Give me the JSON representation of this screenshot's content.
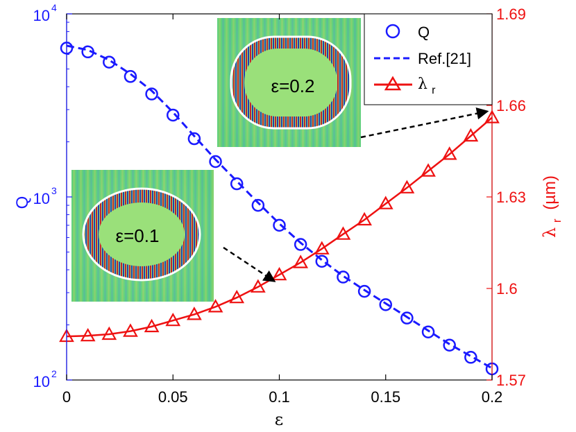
{
  "chart_data": {
    "type": "line",
    "title": "",
    "xlabel": "ε",
    "x_ticks": [
      "0",
      "0.05",
      "0.1",
      "0.15",
      "0.2"
    ],
    "xlim": [
      0,
      0.2
    ],
    "left_axis": {
      "label": "Q",
      "scale": "log",
      "ylim": [
        100,
        10000
      ],
      "tick_base": "10",
      "tick_powers": [
        "2",
        "3",
        "4"
      ],
      "color": "#1a1aff"
    },
    "right_axis": {
      "label_main": "λ",
      "label_sub": "r",
      "label_unit": "(µm)",
      "ylim": [
        1.57,
        1.69
      ],
      "tick_labels": [
        "1.57",
        "1.6",
        "1.63",
        "1.66",
        "1.69"
      ],
      "color": "#ee1111"
    },
    "series": [
      {
        "name": "Q",
        "axis": "left",
        "style": "circle-markers",
        "color": "#1a1aff",
        "x": [
          0,
          0.01,
          0.02,
          0.03,
          0.04,
          0.05,
          0.06,
          0.07,
          0.08,
          0.09,
          0.1,
          0.11,
          0.12,
          0.13,
          0.14,
          0.15,
          0.16,
          0.17,
          0.18,
          0.19,
          0.2
        ],
        "values": [
          6500,
          6200,
          5450,
          4550,
          3650,
          2800,
          2080,
          1560,
          1180,
          900,
          700,
          550,
          445,
          365,
          305,
          258,
          218,
          183,
          155,
          133,
          115
        ]
      },
      {
        "name": "Ref.[21]",
        "axis": "left",
        "style": "dashed-line",
        "color": "#1a1aff",
        "x": [
          0,
          0.01,
          0.02,
          0.03,
          0.04,
          0.05,
          0.06,
          0.07,
          0.08,
          0.09,
          0.1,
          0.11,
          0.12,
          0.13,
          0.14,
          0.15,
          0.16,
          0.17,
          0.18,
          0.19,
          0.2
        ],
        "values": [
          6700,
          6350,
          5600,
          4700,
          3800,
          2900,
          2150,
          1600,
          1220,
          930,
          715,
          562,
          452,
          370,
          310,
          262,
          221,
          186,
          157,
          135,
          116
        ]
      },
      {
        "name": "λ_r",
        "axis": "right",
        "style": "line-triangle-markers",
        "color": "#ee1111",
        "x": [
          0,
          0.01,
          0.02,
          0.03,
          0.04,
          0.05,
          0.06,
          0.07,
          0.08,
          0.09,
          0.1,
          0.11,
          0.12,
          0.13,
          0.14,
          0.15,
          0.16,
          0.17,
          0.18,
          0.19,
          0.2
        ],
        "values": [
          1.5843,
          1.5845,
          1.585,
          1.586,
          1.5875,
          1.5895,
          1.5915,
          1.594,
          1.597,
          1.6005,
          1.6045,
          1.6085,
          1.613,
          1.6178,
          1.6225,
          1.6278,
          1.633,
          1.6385,
          1.644,
          1.65,
          1.656
        ]
      }
    ],
    "legend": {
      "location": "top-right",
      "entries": [
        {
          "label": "Q"
        },
        {
          "label": "Ref.[21]"
        },
        {
          "label_main": "λ",
          "label_sub": "r"
        }
      ]
    },
    "annotations": [
      {
        "label": "ε=0.1",
        "target_x": 0.1,
        "target_axis": "right",
        "target_y": 1.6025
      },
      {
        "label": "ε=0.2",
        "target_x": 0.2,
        "target_axis": "right",
        "target_y": 1.658
      }
    ]
  }
}
